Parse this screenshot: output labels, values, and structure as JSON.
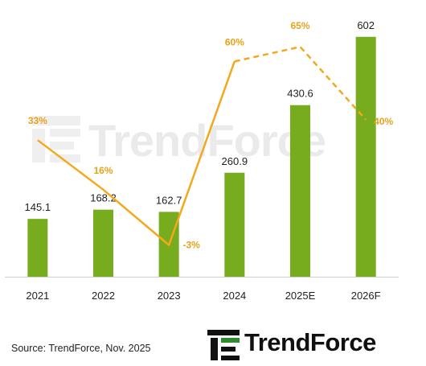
{
  "chart_data": {
    "type": "bar",
    "categories": [
      "2021",
      "2022",
      "2023",
      "2024",
      "2025E",
      "2026F"
    ],
    "series": [
      {
        "type": "bar",
        "values": [
          145.1,
          168.2,
          162.7,
          260.9,
          430.6,
          602
        ],
        "labels": [
          "145.1",
          "168.2",
          "162.7",
          "260.9",
          "430.6",
          "602"
        ],
        "color": "#77ac1e"
      },
      {
        "type": "line",
        "values": [
          33,
          16,
          -3,
          60,
          65,
          40
        ],
        "labels": [
          "33%",
          "16%",
          "-3%",
          "60%",
          "65%",
          "40%"
        ],
        "color": "#f4a81d",
        "dashed_from_index": 3
      }
    ],
    "bar_ylim": [
      0,
      650
    ],
    "line_ylim": [
      -10,
      75
    ],
    "grid": false,
    "legend": "none"
  },
  "watermark": {
    "text": "TrendForce"
  },
  "footer": {
    "source": "Source: TrendForce, Nov. 2025",
    "logo_text": "TrendForce"
  },
  "colors": {
    "bar": "#77ac1e",
    "line": "#f4a81d",
    "label": "#e8a21c",
    "text": "#222222"
  }
}
